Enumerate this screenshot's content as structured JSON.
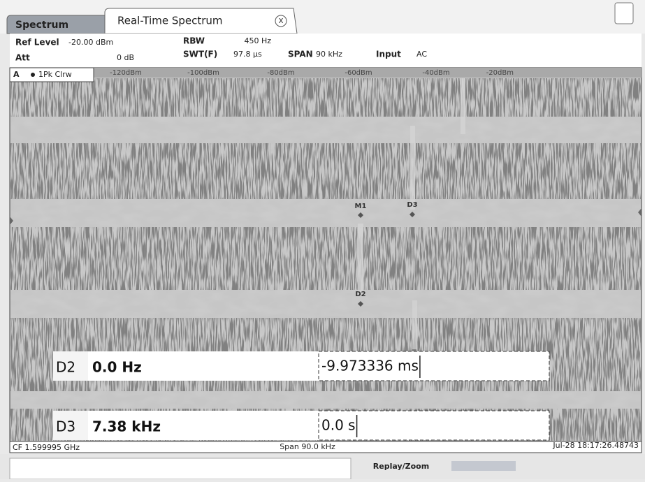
{
  "tabs": [
    "Spectrum",
    "Real-Time Spectrum",
    "X"
  ],
  "header": {
    "ref_level_label": "Ref Level",
    "ref_level": "-20.00 dBm",
    "att_label": "Att",
    "att": "0 dB",
    "rbw_label": "RBW",
    "rbw": "450 Hz",
    "swt_label": "SWT(F)",
    "swt": "97.8 µs",
    "span_label": "SPAN",
    "span": "90 kHz",
    "input_label": "Input",
    "input": "AC"
  },
  "trace": {
    "window": "A",
    "label": "1Pk Clrw"
  },
  "color_scale": [
    "-120dBm",
    "-100dBm",
    "-80dBm",
    "-60dBm",
    "-40dBm",
    "-20dBm"
  ],
  "markers": [
    "M1",
    "D3",
    "D2"
  ],
  "marker_table": {
    "rows": [
      [
        "D2",
        "0.0 Hz",
        "-9.973336 ms"
      ],
      [
        "D3",
        "7.38 kHz",
        "0.0 s"
      ]
    ]
  },
  "footer": {
    "center_frequency": "CF 1.599995 GHz",
    "span": "Span 90.0 kHz",
    "timestamp": "Jul-28 18:17:26.48743"
  },
  "status_bar": {
    "mode": "Replay/Zoom"
  }
}
